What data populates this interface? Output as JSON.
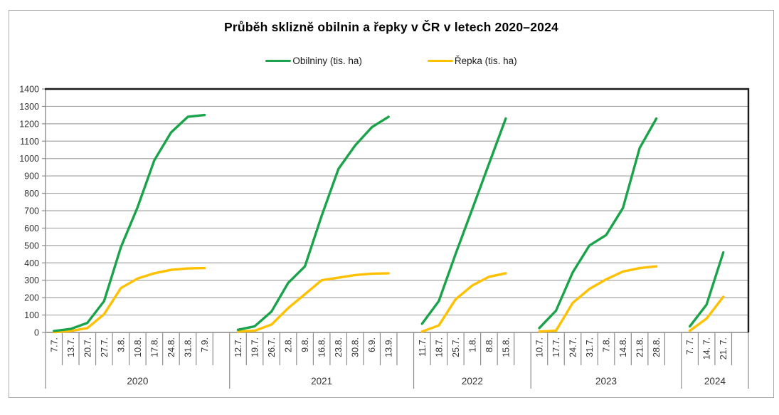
{
  "title": "Průběh sklizně obilnin a řepky v ČR v letech 2020–2024",
  "legend": [
    {
      "label": "Obilniny (tis. ha)",
      "color": "#1aa34a"
    },
    {
      "label": "Řepka (tis. ha)",
      "color": "#ffc000"
    }
  ],
  "colors": {
    "obilniny": "#1aa34a",
    "repka": "#ffc000",
    "gridline": "#a6a6a6",
    "axis": "#8c8c8c",
    "plot_border": "#1a1a1a",
    "tick_text": "#333333"
  },
  "chart_data": {
    "type": "line",
    "title": "Průběh sklizně obilnin a řepky v ČR v letech 2020–2024",
    "xlabel": "",
    "ylabel": "",
    "ylim": [
      0,
      1400
    ],
    "ytick_step": 100,
    "grid": true,
    "legend_position": "top",
    "series_names": [
      "Obilniny (tis. ha)",
      "Řepka (tis. ha)"
    ],
    "groups": [
      {
        "year": "2020",
        "dates": [
          "7.7.",
          "13.7.",
          "20.7.",
          "27.7.",
          "3.8.",
          "10.8.",
          "17.8.",
          "24.8.",
          "31.8.",
          "7.9."
        ],
        "obilniny": [
          8,
          20,
          55,
          180,
          490,
          720,
          990,
          1150,
          1240,
          1250
        ],
        "repka": [
          2,
          8,
          25,
          105,
          255,
          310,
          340,
          360,
          368,
          370
        ]
      },
      {
        "year": "2021",
        "dates": [
          "12.7.",
          "19.7.",
          "26.7.",
          "2.8.",
          "9.8.",
          "16.8.",
          "23.8.",
          "30.8.",
          "6.9.",
          "13.9."
        ],
        "obilniny": [
          15,
          35,
          120,
          285,
          380,
          670,
          940,
          1075,
          1180,
          1240
        ],
        "repka": [
          5,
          10,
          45,
          140,
          220,
          300,
          315,
          330,
          338,
          340
        ]
      },
      {
        "year": "2022",
        "dates": [
          "11.7.",
          "18.7.",
          "25.7.",
          "1.8.",
          "8.8.",
          "15.8."
        ],
        "obilniny": [
          50,
          180,
          450,
          710,
          970,
          1230
        ],
        "repka": [
          5,
          40,
          190,
          270,
          320,
          340
        ]
      },
      {
        "year": "2023",
        "dates": [
          "10.7.",
          "17.7.",
          "24.7.",
          "31.7.",
          "7.8.",
          "14.8.",
          "21.8.",
          "28.8."
        ],
        "obilniny": [
          25,
          125,
          345,
          500,
          560,
          715,
          1060,
          1230
        ],
        "repka": [
          5,
          10,
          170,
          250,
          305,
          350,
          370,
          380
        ]
      },
      {
        "year": "2024",
        "dates": [
          "7. 7.",
          "14. 7.",
          "21. 7."
        ],
        "obilniny": [
          35,
          160,
          460
        ],
        "repka": [
          10,
          80,
          205
        ]
      }
    ]
  }
}
